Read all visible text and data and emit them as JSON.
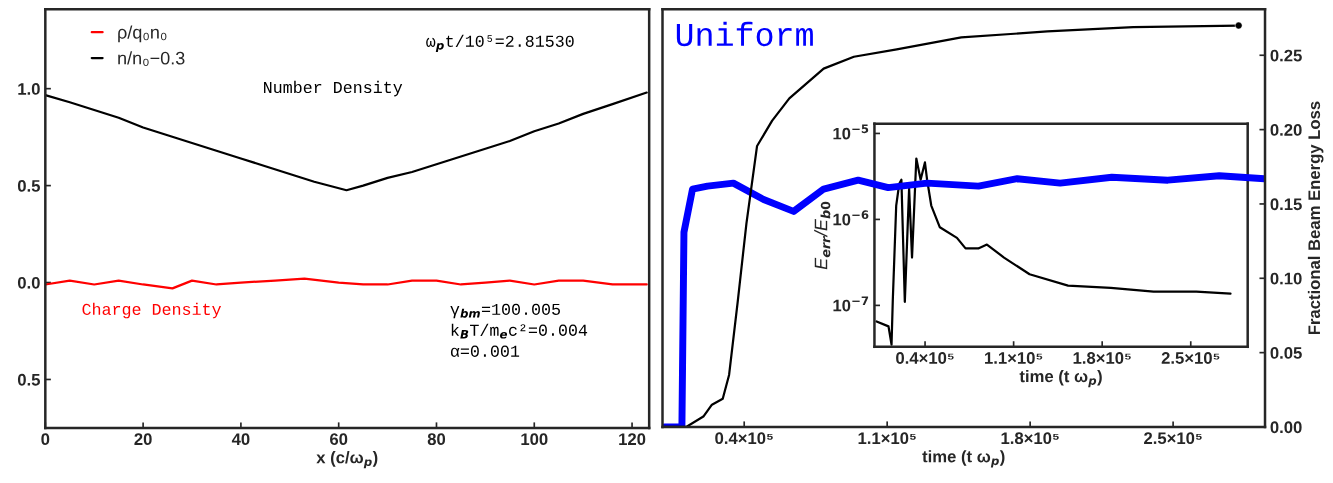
{
  "chart_data": [
    {
      "type": "line",
      "xlabel": "x (c/ω$_{p}$)",
      "xlim": [
        0,
        123.5
      ],
      "xticks": [
        0,
        20,
        40,
        60,
        80,
        100,
        120
      ],
      "ylim": [
        -0.75,
        1.41
      ],
      "yticks": [
        {
          "value": -0.5,
          "label": "0.5"
        },
        {
          "value": 0,
          "label": "0.0"
        },
        0.5,
        {
          "value": 1,
          "label": "1.0"
        }
      ],
      "legend": "top left",
      "series": [
        {
          "name": "ρ/q₀n₀",
          "color": "#ff0000",
          "x": [
            0,
            5,
            10,
            15,
            20,
            26,
            30,
            35,
            40,
            47,
            53,
            60,
            65,
            70,
            75,
            80,
            85,
            90,
            95,
            100,
            105,
            110,
            116,
            123
          ],
          "values": [
            -0.01,
            0.01,
            -0.01,
            0.01,
            -0.01,
            -0.03,
            0.01,
            -0.01,
            0.0,
            0.01,
            0.02,
            0.0,
            -0.01,
            -0.01,
            0.01,
            0.01,
            -0.01,
            0.0,
            0.01,
            -0.01,
            0.01,
            0.01,
            -0.01,
            -0.01
          ]
        },
        {
          "name": "n/n₀−0.3",
          "color": "#000000",
          "x": [
            0,
            5,
            10,
            15,
            20,
            25,
            30,
            35,
            40,
            45,
            50,
            55,
            61.6,
            65,
            70,
            75,
            80,
            85,
            90,
            95,
            100,
            105,
            110,
            116,
            123
          ],
          "values": [
            0.967,
            0.93,
            0.89,
            0.85,
            0.8,
            0.76,
            0.72,
            0.68,
            0.64,
            0.6,
            0.56,
            0.52,
            0.476,
            0.5,
            0.54,
            0.57,
            0.61,
            0.65,
            0.69,
            0.73,
            0.78,
            0.82,
            0.87,
            0.92,
            0.98
          ]
        }
      ],
      "annotations": [
        "ω$_{p}$t/10⁵=2.81530",
        "Number Density",
        "Charge Density",
        "γ$_{bm}$=100.005",
        "k$_{B}$T/m$_{e}$c²=0.004",
        "α=0.001"
      ]
    },
    {
      "type": "line",
      "title": "Uniform",
      "xlabel": "time (t ω$_{p}$)",
      "y2label": "Fractional Beam Energy Loss",
      "xlim": [
        0,
        295000
      ],
      "xticks": [
        {
          "value": 40000,
          "label": "0.4×10⁵"
        },
        {
          "value": 110000,
          "label": "1.1×10⁵"
        },
        {
          "value": 180000,
          "label": "1.8×10⁵"
        },
        {
          "value": 250000,
          "label": "2.5×10⁵"
        }
      ],
      "y2lim": [
        0,
        0.281
      ],
      "y2ticks": [
        {
          "value": 0,
          "label": "0.00"
        },
        {
          "value": 0.05,
          "label": "0.05"
        },
        {
          "value": 0.1,
          "label": "0.10"
        },
        {
          "value": 0.15,
          "label": "0.15"
        },
        {
          "value": 0.2,
          "label": "0.20"
        },
        {
          "value": 0.25,
          "label": "0.25"
        }
      ],
      "series": [
        {
          "color": "#0000ff",
          "axis": "y2",
          "x": [
            1000,
            9500,
            10500,
            14700,
            22000,
            34700,
            49500,
            64200,
            78900,
            95800,
            110500,
            129500,
            154700,
            173700,
            194700,
            220000,
            247400,
            272600,
            294700
          ],
          "values": [
            0,
            0,
            0.131,
            0.16,
            0.162,
            0.164,
            0.153,
            0.145,
            0.16,
            0.166,
            0.161,
            0.164,
            0.162,
            0.167,
            0.164,
            0.168,
            0.166,
            0.169,
            0.167
          ]
        },
        {
          "type": "scatter",
          "color": "#000000",
          "axis": "y2",
          "x": [
            282100
          ],
          "values": [
            0.27
          ]
        },
        {
          "color": "#000000",
          "axis": "y2",
          "x": [
            1000,
            11600,
            20000,
            24200,
            29500,
            32600,
            36800,
            41100,
            46300,
            53700,
            62100,
            78900,
            93700,
            114700,
            146300,
            188400,
            230500,
            282100
          ],
          "values": [
            0,
            0,
            0.007,
            0.015,
            0.019,
            0.035,
            0.084,
            0.137,
            0.189,
            0.206,
            0.221,
            0.241,
            0.249,
            0.254,
            0.262,
            0.266,
            0.269,
            0.27
          ]
        }
      ]
    },
    {
      "type": "line",
      "xlabel": "time (t ω$_{p}$)",
      "ylabel": "E$_{err}$/E$_{b0}$",
      "log": "y",
      "xlim": [
        0,
        295000
      ],
      "xticks": [
        {
          "value": 40000,
          "label": "0.4×10⁵"
        },
        {
          "value": 110000,
          "label": "1.1×10⁵"
        },
        {
          "value": 180000,
          "label": "1.8×10⁵"
        },
        {
          "value": 250000,
          "label": "2.5×10⁵"
        }
      ],
      "ylim": [
        3.3e-08,
        1.3e-05
      ],
      "yticks": [
        {
          "value": 1e-07,
          "label": "10$^{−7}$"
        },
        {
          "value": 1e-06,
          "label": "10$^{−6}$"
        },
        {
          "value": 1e-05,
          "label": "10$^{−5}$"
        }
      ],
      "series": [
        {
          "color": "#000000",
          "x": [
            1700,
            11100,
            13500,
            14500,
            17200,
            19600,
            21300,
            24000,
            27400,
            29700,
            33100,
            36500,
            39900,
            41600,
            44900,
            51700,
            65200,
            72000,
            82100,
            88900,
            102400,
            122600,
            153000,
            186800,
            220600,
            254400,
            281400
          ],
          "values": [
            6.5e-08,
            5.7e-08,
            3.5e-08,
            1.15e-07,
            1.45e-06,
            2.6e-06,
            2.9e-06,
            1.1e-07,
            2.3e-06,
            3.6e-07,
            5.1e-06,
            2.9e-06,
            4.6e-06,
            2.9e-06,
            1.45e-06,
            8.1e-07,
            6.1e-07,
            4.6e-07,
            4.6e-07,
            5.1e-07,
            3.6e-07,
            2.3e-07,
            1.7e-07,
            1.6e-07,
            1.45e-07,
            1.45e-07,
            1.37e-07
          ]
        }
      ]
    }
  ]
}
